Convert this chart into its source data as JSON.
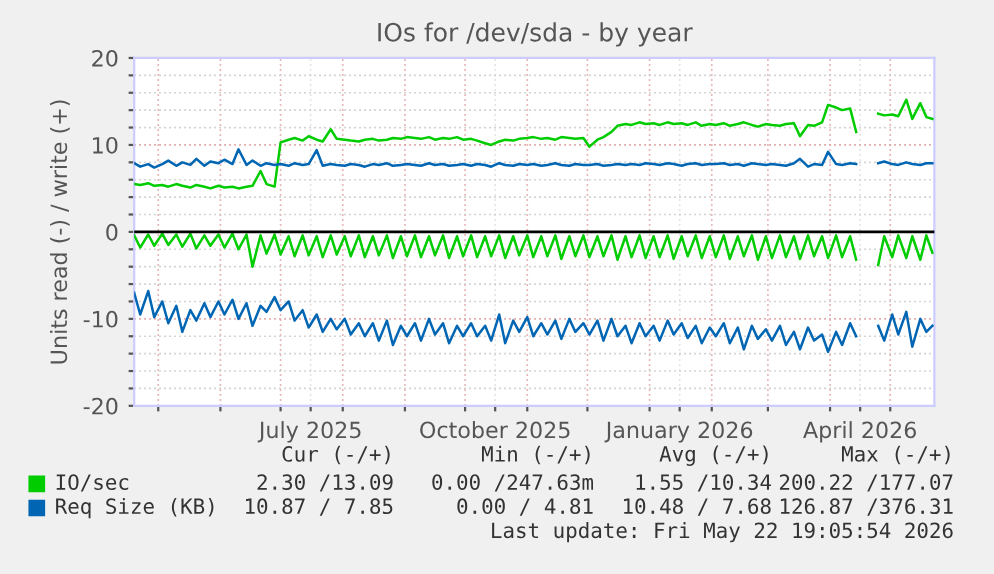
{
  "chart_data": {
    "type": "line",
    "title": "IOs for /dev/sda - by year",
    "ylabel": "Units read (-) / write (+)",
    "x": [
      "2025-04-19",
      "2025-04-22",
      "2025-04-26",
      "2025-04-29",
      "2025-05-03",
      "2025-05-06",
      "2025-05-10",
      "2025-05-13",
      "2025-05-17",
      "2025-05-20",
      "2025-05-24",
      "2025-05-27",
      "2025-05-31",
      "2025-06-03",
      "2025-06-07",
      "2025-06-10",
      "2025-06-14",
      "2025-06-17",
      "2025-06-21",
      "2025-06-24",
      "2025-06-28",
      "2025-07-01",
      "2025-07-05",
      "2025-07-08",
      "2025-07-12",
      "2025-07-15",
      "2025-07-19",
      "2025-07-22",
      "2025-07-26",
      "2025-07-29",
      "2025-08-02",
      "2025-08-05",
      "2025-08-09",
      "2025-08-12",
      "2025-08-16",
      "2025-08-19",
      "2025-08-23",
      "2025-08-26",
      "2025-08-30",
      "2025-09-02",
      "2025-09-06",
      "2025-09-09",
      "2025-09-13",
      "2025-09-16",
      "2025-09-20",
      "2025-09-23",
      "2025-09-27",
      "2025-09-30",
      "2025-10-04",
      "2025-10-07",
      "2025-10-11",
      "2025-10-14",
      "2025-10-18",
      "2025-10-21",
      "2025-10-25",
      "2025-10-28",
      "2025-11-01",
      "2025-11-04",
      "2025-11-08",
      "2025-11-11",
      "2025-11-15",
      "2025-11-18",
      "2025-11-22",
      "2025-11-25",
      "2025-11-29",
      "2025-12-02",
      "2025-12-06",
      "2025-12-09",
      "2025-12-13",
      "2025-12-16",
      "2025-12-20",
      "2025-12-23",
      "2025-12-27",
      "2025-12-30",
      "2026-01-03",
      "2026-01-06",
      "2026-01-10",
      "2026-01-13",
      "2026-01-17",
      "2026-01-20",
      "2026-01-24",
      "2026-01-27",
      "2026-01-31",
      "2026-02-03",
      "2026-02-07",
      "2026-02-10",
      "2026-02-14",
      "2026-02-17",
      "2026-02-21",
      "2026-02-24",
      "2026-02-28",
      "2026-03-03",
      "2026-03-07",
      "2026-03-10",
      "2026-03-14",
      "2026-03-17",
      "2026-03-21",
      "2026-03-24",
      "2026-03-28",
      "2026-03-31",
      "2026-04-04",
      "2026-04-07",
      "2026-04-11",
      "2026-04-14",
      "2026-04-18",
      "2026-04-21",
      "2026-04-25",
      "2026-04-28",
      "2026-05-02",
      "2026-05-05",
      "2026-05-09",
      "2026-05-12",
      "2026-05-16",
      "2026-05-19",
      "2026-05-22"
    ],
    "series": [
      {
        "name": "IO/sec",
        "color": "#00cc00",
        "values": [
          5.5,
          5.4,
          5.6,
          5.3,
          5.4,
          5.2,
          5.5,
          5.3,
          5.1,
          5.4,
          5.2,
          5.0,
          5.3,
          5.1,
          5.2,
          5.0,
          5.2,
          5.3,
          7.0,
          5.5,
          5.2,
          10.3,
          10.6,
          10.8,
          10.5,
          11.0,
          10.6,
          10.4,
          11.8,
          10.7,
          10.6,
          10.5,
          10.4,
          10.6,
          10.7,
          10.5,
          10.6,
          10.8,
          10.7,
          10.9,
          10.8,
          10.7,
          10.9,
          10.6,
          10.8,
          10.7,
          10.9,
          10.6,
          10.7,
          10.5,
          10.2,
          10.0,
          10.4,
          10.6,
          10.5,
          10.7,
          10.8,
          10.9,
          10.7,
          10.8,
          10.6,
          10.9,
          10.8,
          10.7,
          10.8,
          9.8,
          10.6,
          10.9,
          11.5,
          12.2,
          12.4,
          12.3,
          12.6,
          12.4,
          12.5,
          12.3,
          12.6,
          12.4,
          12.5,
          12.3,
          12.6,
          12.2,
          12.4,
          12.3,
          12.5,
          12.2,
          12.4,
          12.6,
          12.3,
          12.1,
          12.4,
          12.3,
          12.2,
          12.4,
          12.5,
          11.0,
          12.3,
          12.2,
          12.6,
          14.6,
          14.3,
          14.0,
          14.2,
          11.5,
          null,
          null,
          13.6,
          13.4,
          13.5,
          13.3,
          15.2,
          13.0,
          14.8,
          13.2,
          13.0
        ]
      },
      {
        "color": "#00cc00",
        "values": [
          -0.4,
          -1.8,
          -0.3,
          -1.6,
          -0.2,
          -1.5,
          -0.3,
          -1.7,
          -0.2,
          -1.9,
          -0.4,
          -1.6,
          -0.3,
          -1.8,
          -0.2,
          -2.0,
          -0.3,
          -4.0,
          -0.4,
          -2.5,
          -0.3,
          -2.6,
          -0.5,
          -2.8,
          -0.4,
          -2.7,
          -0.5,
          -2.9,
          -0.4,
          -2.6,
          -0.5,
          -2.8,
          -0.4,
          -2.9,
          -0.5,
          -2.7,
          -0.4,
          -3.0,
          -0.5,
          -2.8,
          -0.4,
          -2.9,
          -0.5,
          -2.7,
          -0.4,
          -3.0,
          -0.5,
          -2.8,
          -0.4,
          -2.9,
          -0.5,
          -2.8,
          -0.4,
          -3.0,
          -0.5,
          -2.7,
          -0.4,
          -2.9,
          -0.5,
          -2.8,
          -0.4,
          -3.1,
          -0.5,
          -2.8,
          -0.4,
          -2.9,
          -0.5,
          -2.8,
          -0.4,
          -3.2,
          -0.5,
          -2.9,
          -0.4,
          -3.0,
          -0.5,
          -2.9,
          -0.4,
          -3.1,
          -0.5,
          -2.8,
          -0.4,
          -3.0,
          -0.5,
          -2.9,
          -0.4,
          -3.1,
          -0.5,
          -2.8,
          -0.4,
          -3.2,
          -0.5,
          -3.0,
          -0.4,
          -2.9,
          -0.5,
          -3.1,
          -0.4,
          -2.8,
          -0.5,
          -3.0,
          -0.4,
          -2.9,
          -0.5,
          -3.2,
          null,
          null,
          -3.8,
          -0.5,
          -2.9,
          -0.4,
          -3.0,
          -0.5,
          -3.2,
          -0.4,
          -2.4
        ]
      },
      {
        "name": "Req Size (KB)",
        "color": "#0066b3",
        "values": [
          7.9,
          7.5,
          7.8,
          7.4,
          7.8,
          8.2,
          7.6,
          8.0,
          7.7,
          8.4,
          7.6,
          8.1,
          7.9,
          8.3,
          7.8,
          9.5,
          7.7,
          8.2,
          7.6,
          7.9,
          7.7,
          7.8,
          7.6,
          7.9,
          7.7,
          7.8,
          9.4,
          7.6,
          7.8,
          7.7,
          7.6,
          7.8,
          7.7,
          7.5,
          7.8,
          7.7,
          7.9,
          7.6,
          7.7,
          7.8,
          7.7,
          7.6,
          7.9,
          7.7,
          7.8,
          7.6,
          7.7,
          7.8,
          7.6,
          7.8,
          7.7,
          7.5,
          7.9,
          7.7,
          7.6,
          7.8,
          7.7,
          7.8,
          7.6,
          7.7,
          7.9,
          7.7,
          7.6,
          7.8,
          7.7,
          7.7,
          7.8,
          7.6,
          7.7,
          7.8,
          7.7,
          7.8,
          7.7,
          7.9,
          7.8,
          7.7,
          7.9,
          7.8,
          7.6,
          7.8,
          7.9,
          7.7,
          7.8,
          7.8,
          7.9,
          7.7,
          7.8,
          7.6,
          7.9,
          7.8,
          7.7,
          7.8,
          7.7,
          7.6,
          7.9,
          8.4,
          7.5,
          7.8,
          7.7,
          9.2,
          7.8,
          7.7,
          7.9,
          7.8,
          null,
          null,
          7.9,
          8.1,
          7.8,
          7.7,
          8.0,
          7.8,
          7.7,
          7.9,
          7.9
        ]
      },
      {
        "color": "#0066b3",
        "values": [
          -7.0,
          -9.5,
          -6.8,
          -9.8,
          -8.0,
          -10.5,
          -8.5,
          -11.5,
          -9.0,
          -10.2,
          -8.2,
          -9.8,
          -8.0,
          -9.5,
          -7.8,
          -10.0,
          -8.2,
          -10.8,
          -8.5,
          -9.2,
          -7.5,
          -9.0,
          -8.0,
          -10.2,
          -9.0,
          -11.0,
          -9.5,
          -11.5,
          -10.0,
          -11.2,
          -10.0,
          -11.8,
          -10.5,
          -12.0,
          -10.5,
          -12.5,
          -10.2,
          -13.0,
          -10.8,
          -12.0,
          -10.5,
          -12.5,
          -10.0,
          -11.8,
          -10.5,
          -12.8,
          -10.8,
          -12.0,
          -10.5,
          -12.0,
          -10.8,
          -12.5,
          -9.5,
          -12.8,
          -10.2,
          -11.5,
          -9.8,
          -12.0,
          -10.5,
          -11.8,
          -10.2,
          -12.3,
          -10.0,
          -11.5,
          -10.5,
          -11.8,
          -10.2,
          -12.5,
          -10.0,
          -12.0,
          -10.8,
          -12.8,
          -10.5,
          -12.0,
          -10.8,
          -12.5,
          -10.2,
          -11.8,
          -10.5,
          -12.2,
          -10.8,
          -12.8,
          -11.0,
          -12.0,
          -10.5,
          -12.8,
          -11.0,
          -13.5,
          -10.8,
          -12.3,
          -11.2,
          -12.5,
          -10.8,
          -13.0,
          -11.5,
          -13.5,
          -11.0,
          -12.5,
          -11.8,
          -13.8,
          -11.5,
          -13.0,
          -10.5,
          -12.0,
          null,
          null,
          -10.8,
          -12.5,
          -9.5,
          -11.8,
          -9.2,
          -13.2,
          -10.0,
          -11.5,
          -10.8
        ]
      }
    ],
    "xlim": [
      "2025-04-19",
      "2026-05-23"
    ],
    "xticks": [
      {
        "value": "2025-05-01",
        "label": null
      },
      {
        "value": "2025-06-01",
        "label": null
      },
      {
        "value": "2025-07-01",
        "label": null
      },
      {
        "value": "2025-07-16",
        "label": "July 2025"
      },
      {
        "value": "2025-08-01",
        "label": null
      },
      {
        "value": "2025-09-01",
        "label": null
      },
      {
        "value": "2025-10-01",
        "label": null
      },
      {
        "value": "2025-10-16",
        "label": "October 2025"
      },
      {
        "value": "2025-11-01",
        "label": null
      },
      {
        "value": "2025-12-01",
        "label": null
      },
      {
        "value": "2026-01-01",
        "label": null
      },
      {
        "value": "2026-01-16",
        "label": "January 2026"
      },
      {
        "value": "2026-02-01",
        "label": null
      },
      {
        "value": "2026-03-01",
        "label": null
      },
      {
        "value": "2026-04-01",
        "label": null
      },
      {
        "value": "2026-04-16",
        "label": "April 2026"
      },
      {
        "value": "2026-05-01",
        "label": null
      }
    ],
    "ylim": [
      -20,
      20
    ],
    "yticks": [
      -20,
      {
        "value": -18,
        "label": null
      },
      {
        "value": -16,
        "label": null
      },
      {
        "value": -14,
        "label": null
      },
      {
        "value": -12,
        "label": null
      },
      -10,
      {
        "value": -8,
        "label": null
      },
      {
        "value": -6,
        "label": null
      },
      {
        "value": -4,
        "label": null
      },
      {
        "value": -2,
        "label": null
      },
      0,
      {
        "value": 2,
        "label": null
      },
      {
        "value": 4,
        "label": null
      },
      {
        "value": 6,
        "label": null
      },
      {
        "value": 8,
        "label": null
      },
      10,
      {
        "value": 12,
        "label": null
      },
      {
        "value": 14,
        "label": null
      },
      {
        "value": 16,
        "label": null
      },
      {
        "value": 18,
        "label": null
      },
      20
    ],
    "ref_lines": [
      {
        "axis": "y",
        "value": 0,
        "label": null,
        "color": "#000000"
      }
    ],
    "grid": true,
    "legend": "bottom",
    "marker": "none",
    "line_style": "solid",
    "annotations": [
      "Cur (-/+)",
      "Min (-/+)",
      "Avg (-/+)",
      "Max (-/+)",
      "2.30 /13.09",
      "0.00 /247.63m",
      "1.55 /10.34",
      "200.22 /177.07",
      "10.87 / 7.85",
      "0.00 / 4.81",
      "10.48 / 7.68",
      "126.87 /376.31",
      "Last update: Fri May 22 19:05:54 2026"
    ]
  }
}
